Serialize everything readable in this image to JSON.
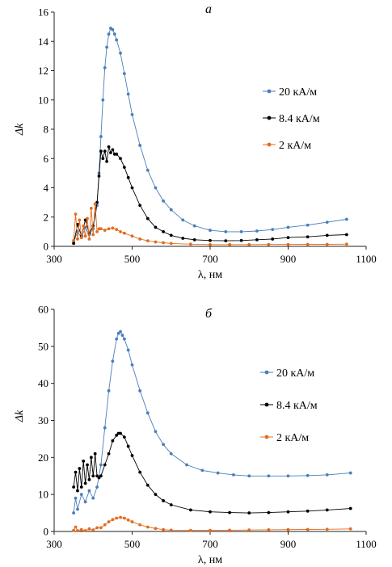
{
  "chart_data": [
    {
      "type": "line",
      "title": "а",
      "xlabel": "λ, нм",
      "ylabel": "Δk",
      "xlim": [
        300,
        1100
      ],
      "ylim": [
        0,
        16
      ],
      "xticks": [
        300,
        500,
        700,
        900,
        1100
      ],
      "yticks": [
        0,
        2,
        4,
        6,
        8,
        10,
        12,
        14,
        16
      ],
      "grid": false,
      "legend": "right",
      "series": [
        {
          "name": "20 кА/м",
          "color": "#4a7ebb",
          "x": [
            350,
            360,
            370,
            380,
            390,
            400,
            410,
            415,
            420,
            425,
            430,
            435,
            440,
            445,
            450,
            455,
            460,
            470,
            480,
            490,
            500,
            520,
            540,
            560,
            580,
            600,
            630,
            660,
            700,
            740,
            780,
            820,
            860,
            900,
            950,
            1000,
            1050
          ],
          "y": [
            0.3,
            1.0,
            0.6,
            1.3,
            0.8,
            1.2,
            2.8,
            5.0,
            7.5,
            10.0,
            12.2,
            13.6,
            14.5,
            14.9,
            14.8,
            14.5,
            14.1,
            13.2,
            11.8,
            10.4,
            9.0,
            6.9,
            5.2,
            4.0,
            3.1,
            2.5,
            1.8,
            1.4,
            1.1,
            1.0,
            1.0,
            1.05,
            1.15,
            1.3,
            1.45,
            1.65,
            1.85
          ]
        },
        {
          "name": "8.4 кА/м",
          "color": "#000000",
          "x": [
            350,
            360,
            370,
            380,
            390,
            400,
            410,
            415,
            420,
            425,
            430,
            435,
            440,
            445,
            450,
            455,
            460,
            470,
            480,
            490,
            500,
            520,
            540,
            560,
            580,
            600,
            630,
            660,
            700,
            740,
            780,
            820,
            860,
            900,
            950,
            1000,
            1050
          ],
          "y": [
            0.2,
            1.5,
            0.7,
            1.8,
            0.9,
            1.4,
            3.0,
            4.8,
            6.5,
            6.0,
            6.5,
            5.8,
            6.8,
            6.4,
            6.6,
            6.3,
            6.3,
            6.0,
            5.4,
            4.7,
            4.0,
            2.8,
            1.9,
            1.3,
            1.0,
            0.75,
            0.55,
            0.45,
            0.4,
            0.38,
            0.4,
            0.45,
            0.5,
            0.6,
            0.65,
            0.75,
            0.8
          ]
        },
        {
          "name": "2 кА/м",
          "color": "#e46c1e",
          "x": [
            350,
            355,
            360,
            365,
            370,
            375,
            380,
            385,
            390,
            395,
            400,
            405,
            410,
            415,
            420,
            430,
            440,
            450,
            460,
            470,
            480,
            500,
            520,
            540,
            560,
            580,
            600,
            650,
            700,
            750,
            800,
            850,
            900,
            950,
            1000,
            1050
          ],
          "y": [
            0.4,
            2.2,
            0.5,
            1.8,
            0.6,
            1.4,
            0.7,
            1.9,
            0.5,
            2.6,
            0.8,
            2.9,
            1.0,
            1.2,
            1.2,
            1.1,
            1.2,
            1.25,
            1.15,
            1.0,
            0.9,
            0.7,
            0.5,
            0.38,
            0.3,
            0.25,
            0.2,
            0.15,
            0.12,
            0.12,
            0.12,
            0.13,
            0.13,
            0.14,
            0.14,
            0.15
          ]
        }
      ]
    },
    {
      "type": "line",
      "title": "б",
      "xlabel": "λ, нм",
      "ylabel": "Δk",
      "xlim": [
        300,
        1100
      ],
      "ylim": [
        0,
        60
      ],
      "xticks": [
        300,
        500,
        700,
        900,
        1100
      ],
      "yticks": [
        0,
        10,
        20,
        30,
        40,
        50,
        60
      ],
      "grid": false,
      "legend": "right",
      "series": [
        {
          "name": "20 кА/м",
          "color": "#4a7ebb",
          "x": [
            350,
            355,
            360,
            370,
            380,
            390,
            400,
            410,
            420,
            430,
            440,
            450,
            460,
            465,
            470,
            475,
            480,
            490,
            500,
            520,
            540,
            560,
            580,
            600,
            640,
            680,
            720,
            760,
            800,
            850,
            900,
            950,
            1000,
            1060
          ],
          "y": [
            5.0,
            9.0,
            6.0,
            10.0,
            8.0,
            11.0,
            9.0,
            12.0,
            18.0,
            28.0,
            38.0,
            46.0,
            52.0,
            53.5,
            54.0,
            53.0,
            52.0,
            49.0,
            45.0,
            38.0,
            32.0,
            27.0,
            23.5,
            21.0,
            18.0,
            16.5,
            15.8,
            15.3,
            15.0,
            15.0,
            15.0,
            15.1,
            15.3,
            15.8
          ]
        },
        {
          "name": "8.4 кА/м",
          "color": "#000000",
          "x": [
            350,
            355,
            360,
            365,
            370,
            375,
            380,
            385,
            390,
            395,
            400,
            405,
            410,
            415,
            420,
            430,
            440,
            450,
            460,
            465,
            470,
            480,
            490,
            500,
            520,
            540,
            560,
            580,
            600,
            650,
            700,
            750,
            800,
            850,
            900,
            950,
            1000,
            1060
          ],
          "y": [
            12.0,
            16.0,
            11.0,
            17.0,
            12.0,
            19.0,
            13.0,
            18.0,
            14.0,
            20.0,
            15.0,
            21.0,
            15.0,
            14.5,
            15.0,
            18.0,
            21.0,
            24.5,
            26.0,
            26.5,
            26.5,
            25.5,
            23.0,
            20.5,
            16.0,
            12.5,
            10.0,
            8.3,
            7.2,
            5.8,
            5.3,
            5.1,
            5.0,
            5.1,
            5.3,
            5.5,
            5.8,
            6.2
          ]
        },
        {
          "name": "2 кА/м",
          "color": "#e46c1e",
          "x": [
            350,
            355,
            360,
            370,
            380,
            390,
            400,
            410,
            420,
            430,
            440,
            450,
            460,
            470,
            480,
            490,
            500,
            520,
            540,
            560,
            580,
            600,
            650,
            700,
            750,
            800,
            850,
            900,
            950,
            1000,
            1060
          ],
          "y": [
            0.3,
            1.2,
            0.2,
            0.5,
            0.2,
            0.7,
            0.4,
            1.0,
            1.0,
            1.8,
            2.6,
            3.2,
            3.6,
            3.8,
            3.6,
            3.1,
            2.6,
            1.8,
            1.2,
            0.8,
            0.5,
            0.35,
            0.3,
            0.3,
            0.35,
            0.4,
            0.45,
            0.5,
            0.55,
            0.6,
            0.7
          ]
        }
      ]
    }
  ]
}
